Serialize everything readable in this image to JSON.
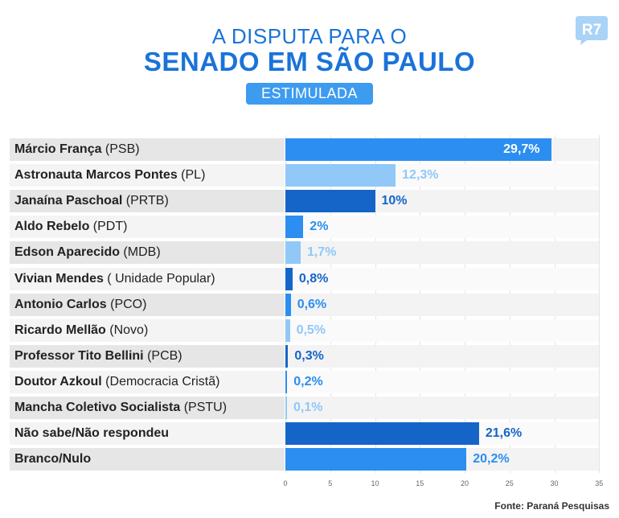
{
  "header": {
    "title_line1": "A DISPUTA PARA O",
    "title_line2": "SENADO EM SÃO PAULO",
    "badge": "ESTIMULADA",
    "logo_text": "R7"
  },
  "source": "Fonte: Paraná Pesquisas",
  "colors": {
    "primary": "#1a73d9",
    "bar_mid": "#2b8ef0",
    "bar_light": "#90c8f8",
    "bar_dark": "#1565c8",
    "badge": "#3d9bf0"
  },
  "chart_data": {
    "type": "bar",
    "orientation": "horizontal",
    "xlim": [
      0,
      35
    ],
    "x_ticks": [
      "0",
      "5",
      "10",
      "15",
      "20",
      "25",
      "30",
      "35"
    ],
    "categories": [
      {
        "name": "Márcio França",
        "party": "(PSB)"
      },
      {
        "name": "Astronauta Marcos Pontes",
        "party": "(PL)"
      },
      {
        "name": "Janaína Paschoal",
        "party": "(PRTB)"
      },
      {
        "name": "Aldo Rebelo",
        "party": "(PDT)"
      },
      {
        "name": "Edson Aparecido",
        "party": "(MDB)"
      },
      {
        "name": "Vivian Mendes",
        "party": "( Unidade Popular)"
      },
      {
        "name": "Antonio Carlos",
        "party": "(PCO)"
      },
      {
        "name": "Ricardo Mellão",
        "party": "(Novo)"
      },
      {
        "name": "Professor Tito Bellini",
        "party": "(PCB)"
      },
      {
        "name": "Doutor Azkoul",
        "party": "(Democracia Cristã)"
      },
      {
        "name": "Mancha Coletivo Socialista",
        "party": "(PSTU)"
      },
      {
        "name": "Não sabe/Não respondeu",
        "party": ""
      },
      {
        "name": "Branco/Nulo",
        "party": ""
      }
    ],
    "values": [
      29.7,
      12.3,
      10,
      2,
      1.7,
      0.8,
      0.6,
      0.5,
      0.3,
      0.2,
      0.1,
      21.6,
      20.2
    ],
    "value_labels": [
      "29,7%",
      "12,3%",
      "10%",
      "2%",
      "1,7%",
      "0,8%",
      "0,6%",
      "0,5%",
      "0,3%",
      "0,2%",
      "0,1%",
      "21,6%",
      "20,2%"
    ],
    "bar_colors": [
      "#2b8ef0",
      "#90c8f8",
      "#1565c8",
      "#2b8ef0",
      "#90c8f8",
      "#1565c8",
      "#2b8ef0",
      "#90c8f8",
      "#1565c8",
      "#2b8ef0",
      "#90c8f8",
      "#1565c8",
      "#2b8ef0"
    ]
  }
}
